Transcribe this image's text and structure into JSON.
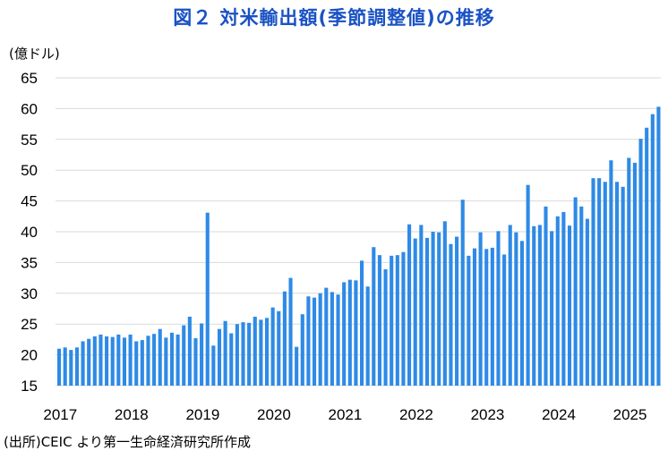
{
  "chart_data": {
    "type": "bar",
    "title": "図２ 対米輸出額(季節調整値)の推移",
    "ylabel": "(億ドル)",
    "source": "(出所)CEIC より第一生命経済研究所作成",
    "ylim": [
      15,
      65
    ],
    "yticks": [
      15,
      20,
      25,
      30,
      35,
      40,
      45,
      50,
      55,
      60,
      65
    ],
    "year_labels": [
      "2017",
      "2018",
      "2019",
      "2020",
      "2021",
      "2022",
      "2023",
      "2024",
      "2025"
    ],
    "start": "2017-01",
    "bar_color": "#2e8ae6",
    "grid": true,
    "series": [
      {
        "values": [
          21.0,
          21.2,
          20.8,
          21.2,
          22.2,
          22.6,
          23.0,
          23.3,
          23.0,
          22.9,
          23.3,
          22.8,
          23.3,
          22.2,
          22.4,
          23.1,
          23.4,
          24.2,
          22.8,
          23.6,
          23.3,
          24.8,
          26.2,
          22.7,
          25.1,
          43.1,
          21.5,
          24.2,
          25.5,
          23.5,
          25.0,
          25.3,
          25.2,
          26.2,
          25.7,
          26.0,
          27.7,
          27.1,
          30.3,
          32.5,
          21.3,
          26.6,
          29.5,
          29.3,
          30.0,
          30.9,
          30.2,
          29.8,
          31.8,
          32.2,
          32.1,
          35.3,
          31.1,
          37.5,
          36.2,
          33.9,
          36.1,
          36.2,
          36.7,
          41.2,
          38.9,
          41.1,
          39.0,
          40.0,
          39.9,
          41.7,
          38.0,
          39.2,
          45.2,
          36.1,
          37.3,
          39.9,
          37.2,
          37.4,
          40.1,
          36.3,
          41.1,
          39.9,
          38.5,
          47.6,
          40.9,
          41.1,
          44.1,
          40.1,
          42.5,
          43.2,
          41.0,
          45.6,
          44.1,
          42.1,
          48.7,
          48.7,
          48.1,
          51.6,
          48.1,
          47.3,
          52.0,
          51.2,
          55.1,
          56.9,
          59.1,
          60.3
        ]
      }
    ]
  }
}
